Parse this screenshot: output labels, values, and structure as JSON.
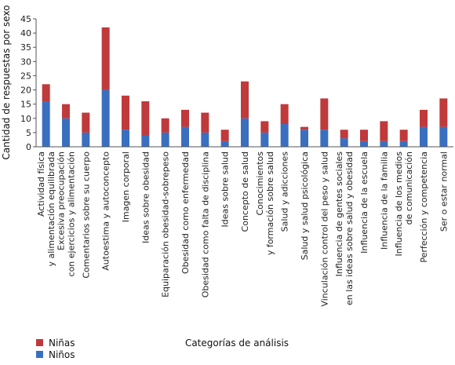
{
  "chart_data": {
    "type": "bar",
    "stacked": true,
    "xlabel": "Categorías de análisis",
    "ylabel": "Cantidad de respuestas por sexo",
    "ylim": [
      0,
      45
    ],
    "yticks": [
      0,
      5,
      10,
      15,
      20,
      25,
      30,
      35,
      40,
      45
    ],
    "grid": false,
    "legend_position": "bottom-left",
    "categories": [
      [
        "Actividad física",
        "y alimentación equilibrada"
      ],
      [
        "Excesiva preocupación",
        "con ejercicios y alimentación"
      ],
      [
        "Comentarios sobre su cuerpo"
      ],
      [
        "Autoestima y autoconcepto"
      ],
      [
        "Imagen corporal"
      ],
      [
        "Ideas sobre obesidad"
      ],
      [
        "Equiparación obesidad-sobrepeso"
      ],
      [
        "Obesidad como enfermedad"
      ],
      [
        "Obesidad como falta de disciplina"
      ],
      [
        "Ideas sobre salud"
      ],
      [
        "Concepto de salud"
      ],
      [
        "Conocimientos",
        "y formación sobre salud"
      ],
      [
        "Salud y adicciones"
      ],
      [
        "Salud y salud psicológica"
      ],
      [
        "Vinculación control del peso y salud"
      ],
      [
        "Influencia de gentes sociales",
        "en las ideas sobre salud y obesidad"
      ],
      [
        "Influencia de la escuela"
      ],
      [
        "Influencia de la familia"
      ],
      [
        "Influencia de los medios",
        "de comunicación"
      ],
      [
        "Perfección y competencia"
      ],
      [
        "Ser o estar normal"
      ]
    ],
    "series": [
      {
        "name": "Niños",
        "color": "#3a6fc0",
        "values": [
          16,
          10,
          5,
          20,
          6,
          4,
          5,
          7,
          5,
          2,
          10,
          5,
          8,
          6,
          6,
          3,
          2,
          2,
          2,
          7,
          7
        ]
      },
      {
        "name": "Niñas",
        "color": "#c0393b",
        "values": [
          6,
          5,
          7,
          22,
          12,
          12,
          5,
          6,
          7,
          4,
          13,
          4,
          7,
          1,
          11,
          3,
          4,
          7,
          4,
          6,
          10
        ]
      }
    ],
    "legend_order": [
      "Niñas",
      "Niños"
    ]
  }
}
